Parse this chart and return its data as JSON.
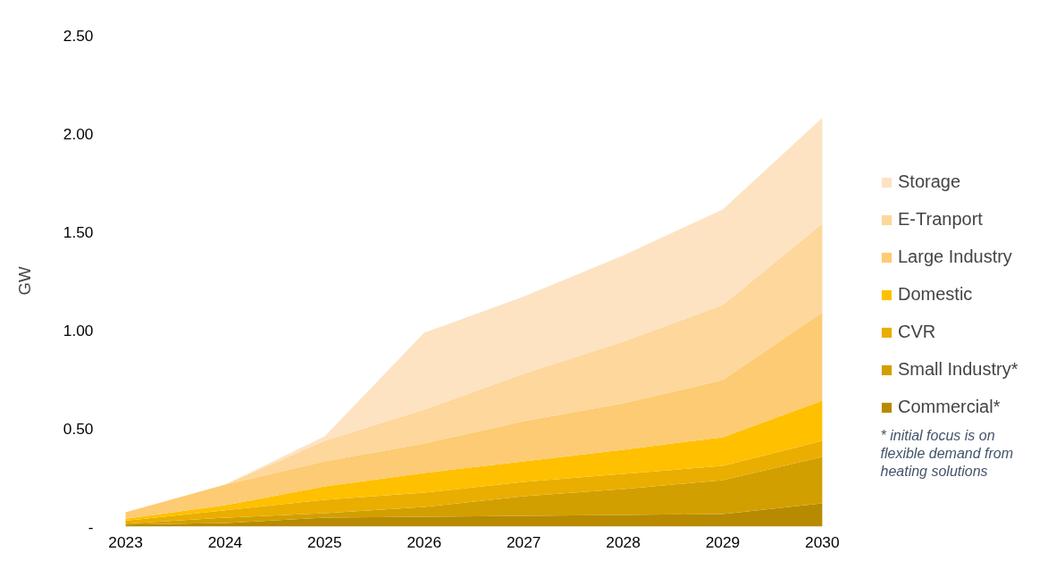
{
  "chart_data": {
    "type": "area",
    "stacked": true,
    "ylabel": "GW",
    "categories": [
      "2023",
      "2024",
      "2025",
      "2026",
      "2027",
      "2028",
      "2029",
      "2030"
    ],
    "ylim": [
      0,
      2.5
    ],
    "yticks": [
      {
        "value": 0,
        "label": "-"
      },
      {
        "value": 0.5,
        "label": "0.50"
      },
      {
        "value": 1,
        "label": "1.00"
      },
      {
        "value": 1.5,
        "label": "1.50"
      },
      {
        "value": 2,
        "label": "2.00"
      },
      {
        "value": 2.5,
        "label": "2.50"
      }
    ],
    "grid": false,
    "legend": "right",
    "series": [
      {
        "name": "Commercial*",
        "color": "#b88a00",
        "values": [
          0.01,
          0.018,
          0.045,
          0.05,
          0.055,
          0.059,
          0.064,
          0.118
        ]
      },
      {
        "name": "Small Industry*",
        "color": "#d29f00",
        "values": [
          0.005,
          0.027,
          0.023,
          0.05,
          0.1,
          0.132,
          0.172,
          0.237
        ]
      },
      {
        "name": "CVR",
        "color": "#e9ae00",
        "values": [
          0.015,
          0.038,
          0.068,
          0.073,
          0.072,
          0.077,
          0.073,
          0.081
        ]
      },
      {
        "name": "Domestic",
        "color": "#ffc000",
        "values": [
          0.01,
          0.026,
          0.069,
          0.1,
          0.105,
          0.123,
          0.146,
          0.205
        ]
      },
      {
        "name": "Large Industry",
        "color": "#fdcb73",
        "values": [
          0.033,
          0.105,
          0.127,
          0.15,
          0.204,
          0.236,
          0.29,
          0.449
        ]
      },
      {
        "name": "E-Tranport",
        "color": "#fdd79b",
        "values": [
          0,
          0,
          0.104,
          0.172,
          0.241,
          0.314,
          0.382,
          0.451
        ]
      },
      {
        "name": "Storage",
        "color": "#fde3c2",
        "values": [
          0,
          0,
          0.023,
          0.391,
          0.393,
          0.439,
          0.487,
          0.539
        ]
      }
    ],
    "annotations": [
      "* initial focus is on flexible demand from heating solutions"
    ]
  }
}
